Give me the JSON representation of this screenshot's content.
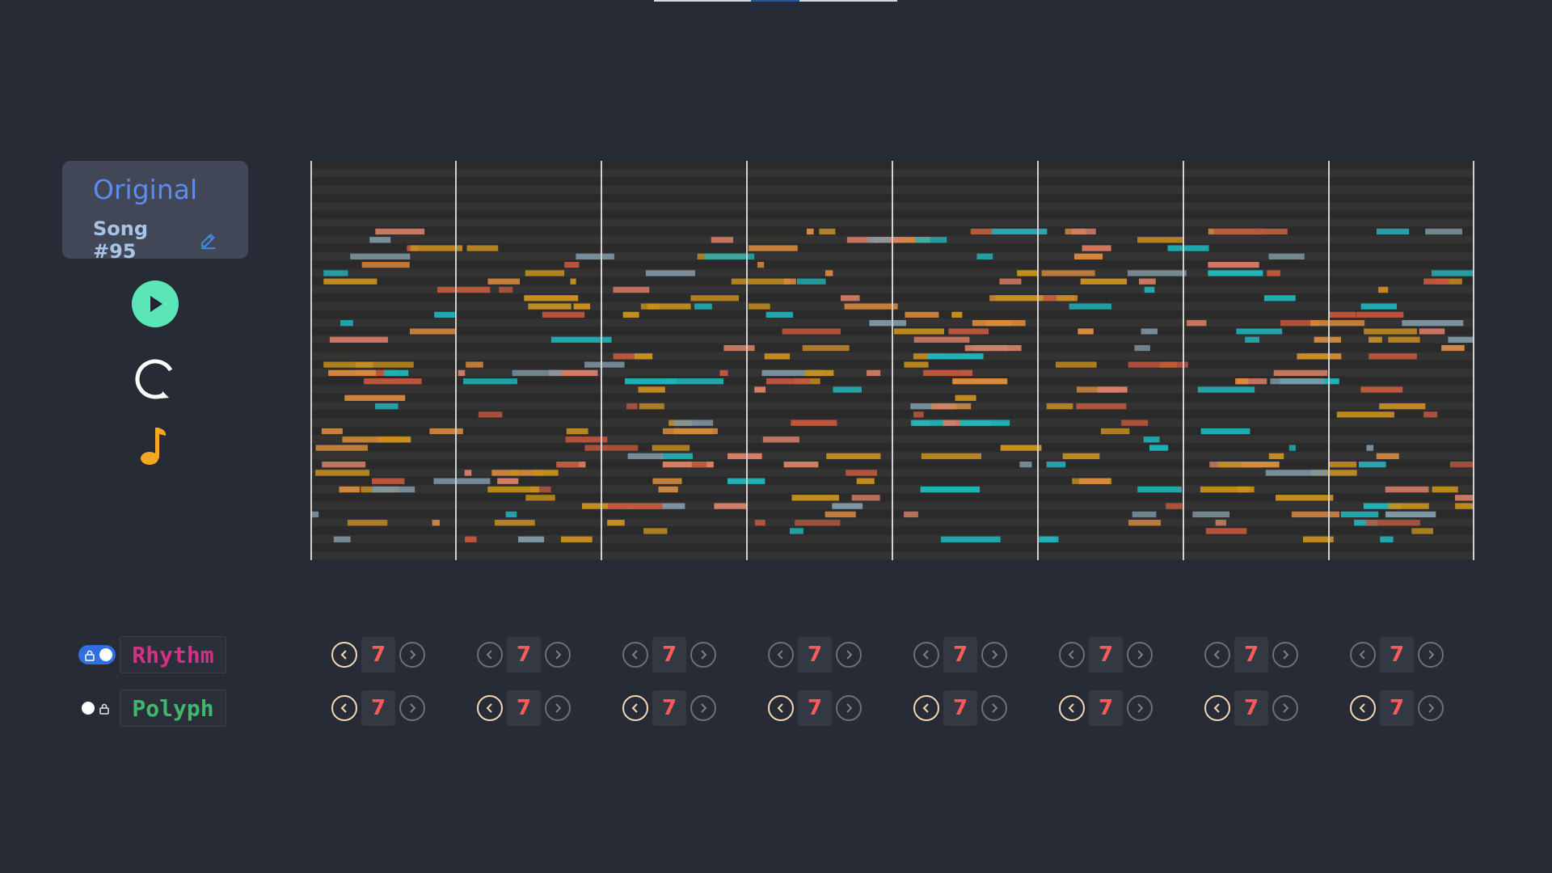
{
  "card": {
    "title": "Original",
    "song_name": "Song #95"
  },
  "icons": {
    "edit": "pencil-icon",
    "play": "play-icon",
    "loop": "loop-icon",
    "note": "music-note-icon",
    "lock": "lock-icon",
    "prev": "chevron-left-icon",
    "next": "chevron-right-icon"
  },
  "controls": [
    {
      "label": "Rhythm",
      "color": "#d62f86",
      "toggle_on": true,
      "values": [
        "7",
        "7",
        "7",
        "7",
        "7",
        "7",
        "7",
        "7"
      ]
    },
    {
      "label": "Polyph",
      "color": "#3fb86b",
      "toggle_on": false,
      "values": [
        "7",
        "7",
        "7",
        "7",
        "7",
        "7",
        "7",
        "7"
      ]
    }
  ],
  "piano_roll": {
    "bars": 8,
    "palette": {
      "amber": "#c8901e",
      "orange": "#d98a3c",
      "red": "#c0563e",
      "salmon": "#d97d66",
      "teal": "#1fb3b8",
      "slate": "#7f97a4"
    }
  }
}
